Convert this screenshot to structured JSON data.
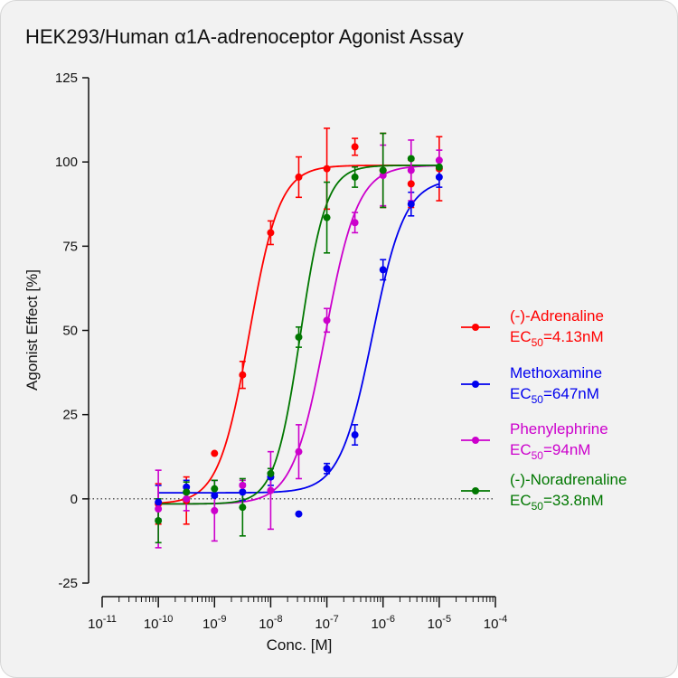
{
  "chart_data": {
    "type": "scatter",
    "title": "HEK293/Human α1A-adrenoceptor Agonist Assay",
    "xlabel": "Conc. [M]",
    "ylabel": "Agonist Effect [%]",
    "x_scale": "log",
    "xlim": [
      1e-11,
      0.0001
    ],
    "ylim": [
      -25,
      125
    ],
    "y_ticks": [
      -25,
      0,
      25,
      50,
      75,
      100,
      125
    ],
    "x_tick_labels": [
      {
        "base": "10",
        "exp": "-11"
      },
      {
        "base": "10",
        "exp": "-10"
      },
      {
        "base": "10",
        "exp": "-9"
      },
      {
        "base": "10",
        "exp": "-8"
      },
      {
        "base": "10",
        "exp": "-7"
      },
      {
        "base": "10",
        "exp": "-6"
      },
      {
        "base": "10",
        "exp": "-5"
      },
      {
        "base": "10",
        "exp": "-4"
      }
    ],
    "baseline": {
      "y": 0,
      "style": "dotted"
    },
    "legend_position": "right",
    "series": [
      {
        "name": "(-)-Adrenaline",
        "ec50_label": "EC",
        "ec50_sub": "50",
        "ec50_value": "=4.13nM",
        "color": "#ff0000",
        "fit": {
          "bottom": -1.5,
          "top": 99,
          "ec50": 4.13e-09,
          "hill": 1.6
        },
        "points": [
          {
            "x": 1e-10,
            "y": -1.5,
            "err": 6
          },
          {
            "x": 3.16e-10,
            "y": -0.5,
            "err": 7
          },
          {
            "x": 1e-09,
            "y": 13.5,
            "err": 0
          },
          {
            "x": 3.16e-09,
            "y": 36.8,
            "err": 4
          },
          {
            "x": 1e-08,
            "y": 79,
            "err": 3.5
          },
          {
            "x": 3.16e-08,
            "y": 95.5,
            "err": 6
          },
          {
            "x": 1e-07,
            "y": 98,
            "err": 12
          },
          {
            "x": 3.16e-07,
            "y": 104.5,
            "err": 2.5
          },
          {
            "x": 1e-06,
            "y": 97.5,
            "err": 11
          },
          {
            "x": 3.16e-06,
            "y": 93.5,
            "err": 7
          },
          {
            "x": 1e-05,
            "y": 98,
            "err": 9.5
          }
        ]
      },
      {
        "name": "Methoxamine",
        "ec50_label": "EC",
        "ec50_sub": "50",
        "ec50_value": "=647nM",
        "color": "#0000ee",
        "fit": {
          "bottom": 1.8,
          "top": 95,
          "ec50": 6.47e-07,
          "hill": 1.5
        },
        "points": [
          {
            "x": 1e-10,
            "y": -1,
            "err": 5
          },
          {
            "x": 3.16e-10,
            "y": 3.5,
            "err": 2
          },
          {
            "x": 1e-09,
            "y": 1,
            "err": 4.5
          },
          {
            "x": 3.16e-09,
            "y": 2,
            "err": 2.5
          },
          {
            "x": 1e-08,
            "y": 6.5,
            "err": 2.5
          },
          {
            "x": 3.16e-08,
            "y": -4.5,
            "err": 0
          },
          {
            "x": 1e-07,
            "y": 9,
            "err": 1.5
          },
          {
            "x": 3.16e-07,
            "y": 19,
            "err": 3
          },
          {
            "x": 1e-06,
            "y": 68,
            "err": 3
          },
          {
            "x": 3.16e-06,
            "y": 87.5,
            "err": 3.5
          },
          {
            "x": 1e-05,
            "y": 95.5,
            "err": 3
          }
        ]
      },
      {
        "name": "Phenylephrine",
        "ec50_label": "EC",
        "ec50_sub": "50",
        "ec50_value": "=94nM",
        "color": "#cc00cc",
        "fit": {
          "bottom": -1.5,
          "top": 99,
          "ec50": 9.4e-08,
          "hill": 1.5
        },
        "points": [
          {
            "x": 1e-10,
            "y": -3,
            "err": 11.5
          },
          {
            "x": 3.16e-10,
            "y": 0,
            "err": 3.5
          },
          {
            "x": 1e-09,
            "y": -3.5,
            "err": 9
          },
          {
            "x": 3.16e-09,
            "y": 4,
            "err": 1.5
          },
          {
            "x": 1e-08,
            "y": 2.5,
            "err": 11.5
          },
          {
            "x": 3.16e-08,
            "y": 14,
            "err": 8
          },
          {
            "x": 1e-07,
            "y": 53,
            "err": 3.5
          },
          {
            "x": 3.16e-07,
            "y": 82,
            "err": 3
          },
          {
            "x": 1e-06,
            "y": 96,
            "err": 9
          },
          {
            "x": 3.16e-06,
            "y": 97.5,
            "err": 9
          },
          {
            "x": 1e-05,
            "y": 100.5,
            "err": 3
          }
        ]
      },
      {
        "name": "(-)-Noradrenaline",
        "ec50_label": "EC",
        "ec50_sub": "50",
        "ec50_value": "=33.8nM",
        "color": "#007700",
        "fit": {
          "bottom": -1.5,
          "top": 99,
          "ec50": 3.38e-08,
          "hill": 1.9
        },
        "points": [
          {
            "x": 1e-10,
            "y": -6.5,
            "err": 6.5
          },
          {
            "x": 3.16e-10,
            "y": 2,
            "err": 3
          },
          {
            "x": 1e-09,
            "y": 3,
            "err": 2.5
          },
          {
            "x": 3.16e-09,
            "y": -2.5,
            "err": 8.5
          },
          {
            "x": 1e-08,
            "y": 7.5,
            "err": 1.5
          },
          {
            "x": 3.16e-08,
            "y": 48,
            "err": 3
          },
          {
            "x": 1e-07,
            "y": 83.5,
            "err": 10.5
          },
          {
            "x": 3.16e-07,
            "y": 95.5,
            "err": 3
          },
          {
            "x": 1e-06,
            "y": 97.5,
            "err": 11
          },
          {
            "x": 3.16e-06,
            "y": 101,
            "err": 0
          },
          {
            "x": 1e-05,
            "y": 98.5,
            "err": 0
          }
        ]
      }
    ]
  }
}
